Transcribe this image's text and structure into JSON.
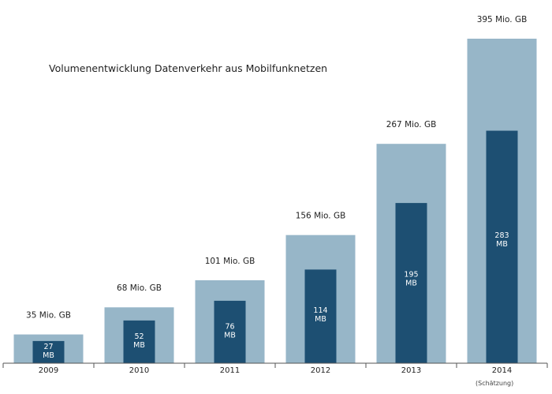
{
  "chart_data": {
    "type": "bar",
    "title": "Volumenentwicklung Datenverkehr aus Mobilfunknetzen",
    "categories": [
      "2009",
      "2010",
      "2011",
      "2012",
      "2013",
      "2014"
    ],
    "series": [
      {
        "values": [
          35,
          68,
          101,
          156,
          267,
          395
        ],
        "labels": [
          "35 Mio. GB",
          "68 Mio. GB",
          "101 Mio. GB",
          "156 Mio. GB",
          "267 Mio. GB",
          "395 Mio. GB"
        ],
        "color": "#97b6c8"
      },
      {
        "values": [
          27,
          52,
          76,
          114,
          195,
          283
        ],
        "labels_line1": [
          "27",
          "52",
          "76",
          "114",
          "195",
          "283"
        ],
        "labels_line2": [
          "MB",
          "MB",
          "MB",
          "MB",
          "MB",
          "MB"
        ],
        "color": "#1d4f72"
      }
    ],
    "note": "(Schätzung)",
    "grid": false,
    "legend": "none"
  }
}
